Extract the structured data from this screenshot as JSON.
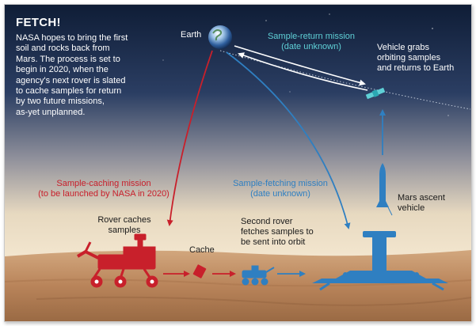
{
  "colors": {
    "red": "#c8202b",
    "blue": "#2f7fc1",
    "teal": "#5fd0d6",
    "white": "#ffffff",
    "dark_text": "#1a1a1a"
  },
  "title": "FETCH!",
  "intro": [
    "NASA hopes to bring the first",
    "soil and rocks back from",
    "Mars. The process is set to",
    "begin in 2020, when the",
    "agency's next rover is slated",
    "to cache samples for return",
    "by two future missions,",
    "as-yet unplanned."
  ],
  "earth_label": "Earth",
  "return_mission": [
    "Sample-return mission",
    "(date unknown)"
  ],
  "vehicle_grabs": [
    "Vehicle grabs",
    "orbiting samples",
    "and returns to Earth"
  ],
  "caching_mission": [
    "Sample-caching mission",
    "(to be launched by NASA in 2020)"
  ],
  "fetching_mission": [
    "Sample-fetching mission",
    "(date unknown)"
  ],
  "ascent_vehicle": [
    "Mars ascent",
    "vehicle"
  ],
  "rover_caches": [
    "Rover caches",
    "samples"
  ],
  "cache_label": "Cache",
  "second_rover": [
    "Second rover",
    "fetches samples to",
    "be sent into orbit"
  ]
}
